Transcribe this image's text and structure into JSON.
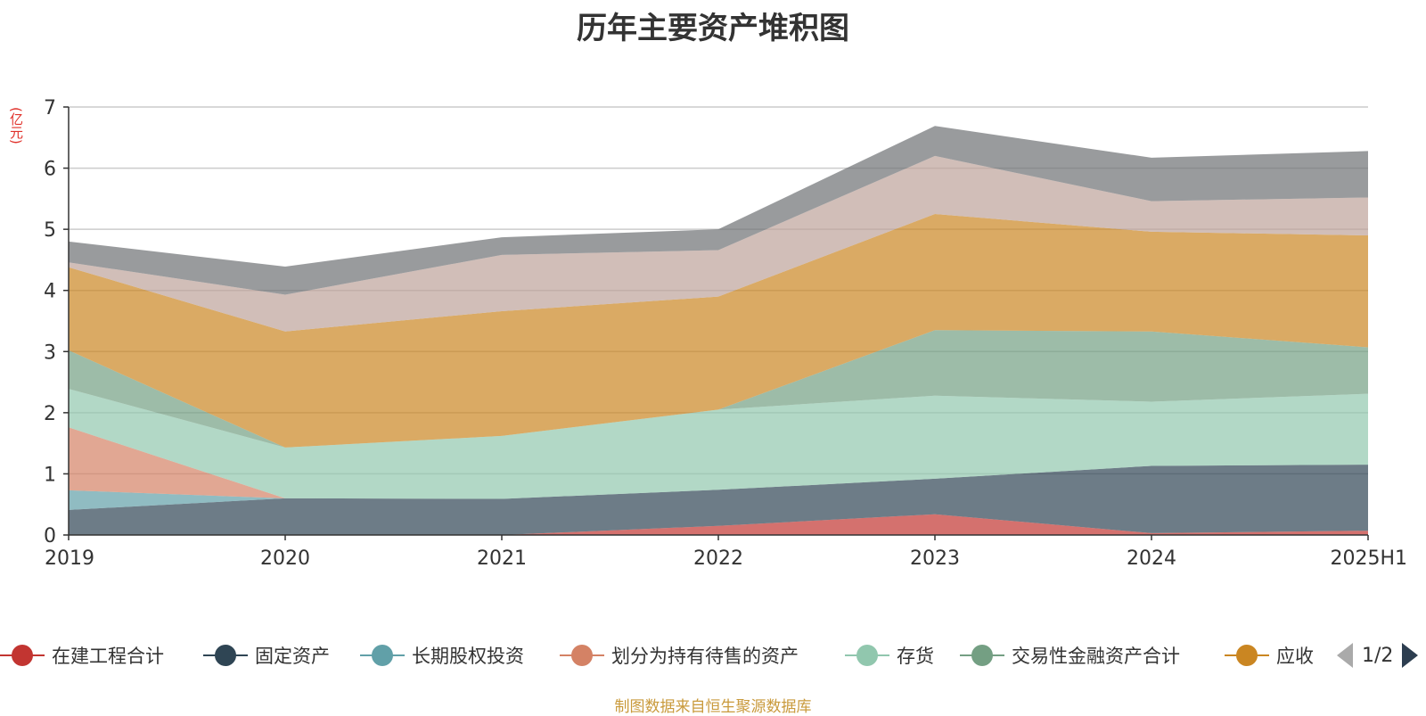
{
  "chart_data": {
    "type": "area",
    "title": "历年主要资产堆积图",
    "unit": "(亿元)",
    "categories": [
      "2019",
      "2020",
      "2021",
      "2022",
      "2023",
      "2024",
      "2025H1"
    ],
    "ylim": [
      0,
      7
    ],
    "yticks": [
      0,
      1,
      2,
      3,
      4,
      5,
      6,
      7
    ],
    "grid": true,
    "stacked": true,
    "series": [
      {
        "name": "在建工程合计",
        "color": "#c23531",
        "values": [
          0,
          0,
          0,
          0.15,
          0.34,
          0.03,
          0.07
        ]
      },
      {
        "name": "固定资产",
        "color": "#2f4554",
        "values": [
          0.41,
          0.6,
          0.59,
          0.59,
          0.58,
          1.1,
          1.08
        ]
      },
      {
        "name": "长期股权投资",
        "color": "#61a0a8",
        "values": [
          0.32,
          0,
          0,
          0,
          0,
          0,
          0
        ]
      },
      {
        "name": "划分为持有待售的资产",
        "color": "#d48265",
        "values": [
          1.03,
          0,
          0,
          0,
          0,
          0,
          0
        ]
      },
      {
        "name": "存货",
        "color": "#91c7ae",
        "values": [
          0.63,
          0.83,
          1.03,
          1.31,
          1.36,
          1.05,
          1.16
        ]
      },
      {
        "name": "交易性金融资产合计",
        "color": "#749f83",
        "values": [
          0.63,
          0,
          0,
          0,
          1.07,
          1.15,
          0.76
        ]
      },
      {
        "name": "应收",
        "color": "#ca8622",
        "values": [
          1.36,
          1.9,
          2.04,
          1.85,
          1.9,
          1.63,
          1.83
        ]
      },
      {
        "name": "",
        "color": "#bda29a",
        "values": [
          0.08,
          0.6,
          0.92,
          0.76,
          0.95,
          0.5,
          0.62
        ]
      },
      {
        "name": "",
        "color": "#6e7074",
        "values": [
          0.34,
          0.46,
          0.29,
          0.34,
          0.49,
          0.71,
          0.76
        ]
      }
    ],
    "legend": {
      "page": "1/2",
      "position": "bottom"
    }
  },
  "footer": {
    "source": "制图数据来自恒生聚源数据库"
  }
}
